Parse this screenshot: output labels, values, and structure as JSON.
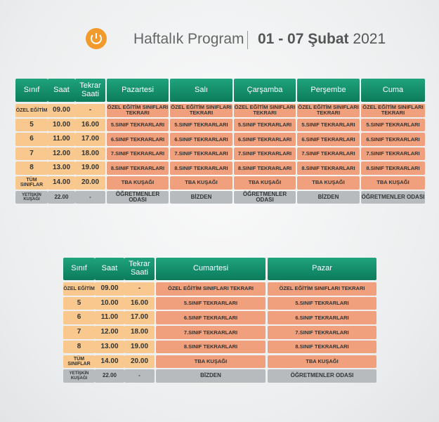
{
  "header": {
    "title": "Haftalık Program",
    "date_range": "01 - 07 Şubat",
    "year": "2021"
  },
  "tables": [
    {
      "columns": [
        "Sınıf",
        "Saat",
        "Tekrar Saati",
        "Pazartesi",
        "Salı",
        "Çarşamba",
        "Perşembe",
        "Cuma"
      ],
      "rows": [
        [
          "ÖZEL EĞİTİM",
          "09.00",
          "-",
          "ÖZEL EĞİTİM SINIFLARI TEKRARI",
          "ÖZEL EĞİTİM SINIFLARI TEKRARI",
          "ÖZEL EĞİTİM SINIFLARI TEKRARI",
          "ÖZEL EĞİTİM SINIFLARI TEKRARI",
          "ÖZEL EĞİTİM SINIFLARI TEKRARI"
        ],
        [
          "5",
          "10.00",
          "16.00",
          "5.SINIF TEKRARLARI",
          "5.SINIF TEKRARLARI",
          "5.SINIF TEKRARLARI",
          "5.SINIF TEKRARLARI",
          "5.SINIF TEKRARLARI"
        ],
        [
          "6",
          "11.00",
          "17.00",
          "6.SINIF TEKRARLARI",
          "6.SINIF TEKRARLARI",
          "6.SINIF TEKRARLARI",
          "6.SINIF TEKRARLARI",
          "6.SINIF TEKRARLARI"
        ],
        [
          "7",
          "12.00",
          "18.00",
          "7.SINIF TEKRARLARI",
          "7.SINIF TEKRARLARI",
          "7.SINIF TEKRARLARI",
          "7.SINIF TEKRARLARI",
          "7.SINIF TEKRARLARI"
        ],
        [
          "8",
          "13.00",
          "19.00",
          "8.SINIF TEKRARLARI",
          "8.SINIF TEKRARLARI",
          "8.SINIF TEKRARLARI",
          "8.SINIF TEKRARLARI",
          "8.SINIF TEKRARLARI"
        ],
        [
          "TÜM SINIFLAR",
          "14.00",
          "20.00",
          "TBA KUŞAĞI",
          "TBA KUŞAĞI",
          "TBA KUŞAĞI",
          "TBA KUŞAĞI",
          "TBA KUŞAĞI"
        ],
        [
          "YETİŞKİN KUŞAĞI",
          "22.00",
          "-",
          "ÖĞRETMENLER ODASI",
          "BİZDEN",
          "ÖĞRETMENLER ODASI",
          "BİZDEN",
          "ÖĞRETMENLER ODASI"
        ]
      ]
    },
    {
      "columns": [
        "Sınıf",
        "Saat",
        "Tekrar Saati",
        "Cumartesi",
        "Pazar"
      ],
      "rows": [
        [
          "ÖZEL EĞİTİM",
          "09.00",
          "-",
          "ÖZEL EĞİTİM SINIFLARI TEKRARI",
          "ÖZEL EĞİTİM SINIFLARI TEKRARI"
        ],
        [
          "5",
          "10.00",
          "16.00",
          "5.SINIF TEKRARLARI",
          "5.SINIF TEKRARLARI"
        ],
        [
          "6",
          "11.00",
          "17.00",
          "6.SINIF TEKRARLARI",
          "6.SINIF TEKRARLARI"
        ],
        [
          "7",
          "12.00",
          "18.00",
          "7.SINIF TEKRARLARI",
          "7.SINIF TEKRARLARI"
        ],
        [
          "8",
          "13.00",
          "19.00",
          "8.SINIF TEKRARLARI",
          "8.SINIF TEKRARLARI"
        ],
        [
          "TÜM SINIFLAR",
          "14.00",
          "20.00",
          "TBA KUŞAĞI",
          "TBA KUŞAĞI"
        ],
        [
          "YETİŞKİN KUŞAĞI",
          "22.00",
          "-",
          "BİZDEN",
          "ÖĞRETMENLER ODASI"
        ]
      ]
    }
  ]
}
